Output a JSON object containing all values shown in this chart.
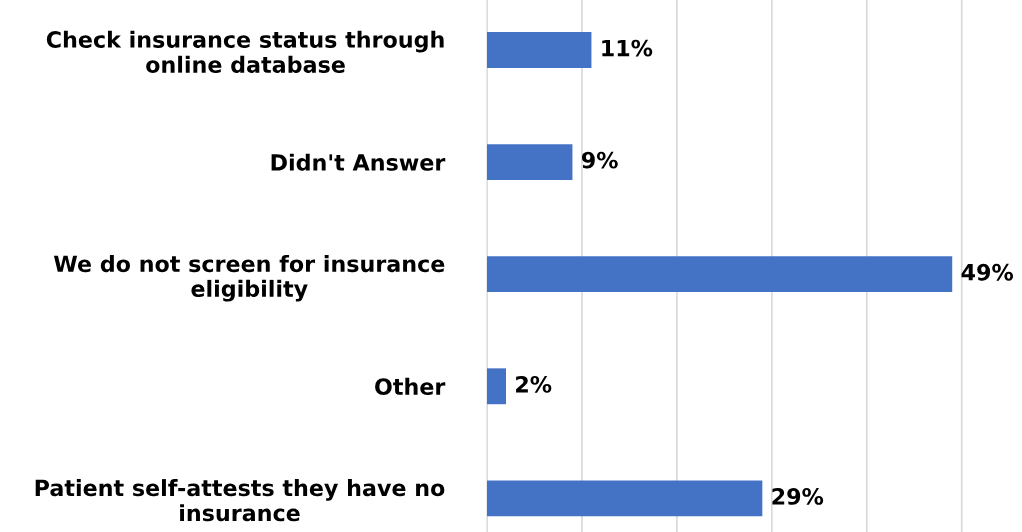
{
  "chart_data": {
    "type": "bar",
    "orientation": "horizontal",
    "categories": [
      "Check insurance status through\nonline database",
      "Didn't Answer",
      "We do not screen for insurance\neligibility",
      "Other",
      "Patient self-attests they have no\ninsurance"
    ],
    "values": [
      11,
      9,
      49,
      2,
      29
    ],
    "value_labels": [
      "11%",
      "9%",
      "49%",
      "2%",
      "29%"
    ],
    "color": "#4472c4",
    "xticks": [
      {
        "value": 0,
        "label": null
      },
      {
        "value": 10,
        "label": null
      },
      {
        "value": 20,
        "label": null
      },
      {
        "value": 30,
        "label": null
      },
      {
        "value": 40,
        "label": null
      },
      {
        "value": 50,
        "label": null
      }
    ],
    "grid": "x",
    "tick_labels": "y"
  }
}
